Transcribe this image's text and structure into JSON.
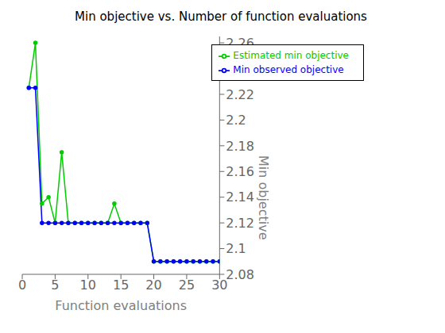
{
  "chart_data": {
    "type": "line",
    "title": "Min objective vs. Number of function evaluations",
    "xlabel": "Function evaluations",
    "ylabel": "Min objective",
    "x": [
      1,
      2,
      3,
      4,
      5,
      6,
      7,
      8,
      9,
      10,
      11,
      12,
      13,
      14,
      15,
      16,
      17,
      18,
      19,
      20,
      21,
      22,
      23,
      24,
      25,
      26,
      27,
      28,
      29,
      30
    ],
    "series": [
      {
        "name": "Estimated min objective",
        "color": "#00CC00",
        "values": [
          2.225,
          2.26,
          2.135,
          2.14,
          2.12,
          2.175,
          2.12,
          2.12,
          2.12,
          2.12,
          2.12,
          2.12,
          2.12,
          2.135,
          2.12,
          2.12,
          2.12,
          2.12,
          2.12,
          2.09,
          2.09,
          2.09,
          2.09,
          2.09,
          2.09,
          2.09,
          2.09,
          2.09,
          2.09,
          2.09
        ]
      },
      {
        "name": "Min observed objective",
        "color": "#0000FF",
        "values": [
          2.225,
          2.225,
          2.12,
          2.12,
          2.12,
          2.12,
          2.12,
          2.12,
          2.12,
          2.12,
          2.12,
          2.12,
          2.12,
          2.12,
          2.12,
          2.12,
          2.12,
          2.12,
          2.12,
          2.09,
          2.09,
          2.09,
          2.09,
          2.09,
          2.09,
          2.09,
          2.09,
          2.09,
          2.09,
          2.09
        ]
      }
    ],
    "xlim": [
      0,
      30
    ],
    "ylim": [
      2.08,
      2.265
    ],
    "xticks": [
      0,
      5,
      10,
      15,
      20,
      25,
      30
    ],
    "yticks": [
      2.08,
      2.1,
      2.12,
      2.14,
      2.16,
      2.18,
      2.2,
      2.22,
      2.24,
      2.26
    ],
    "grid": false,
    "legend": "upper right",
    "marker": "point"
  }
}
